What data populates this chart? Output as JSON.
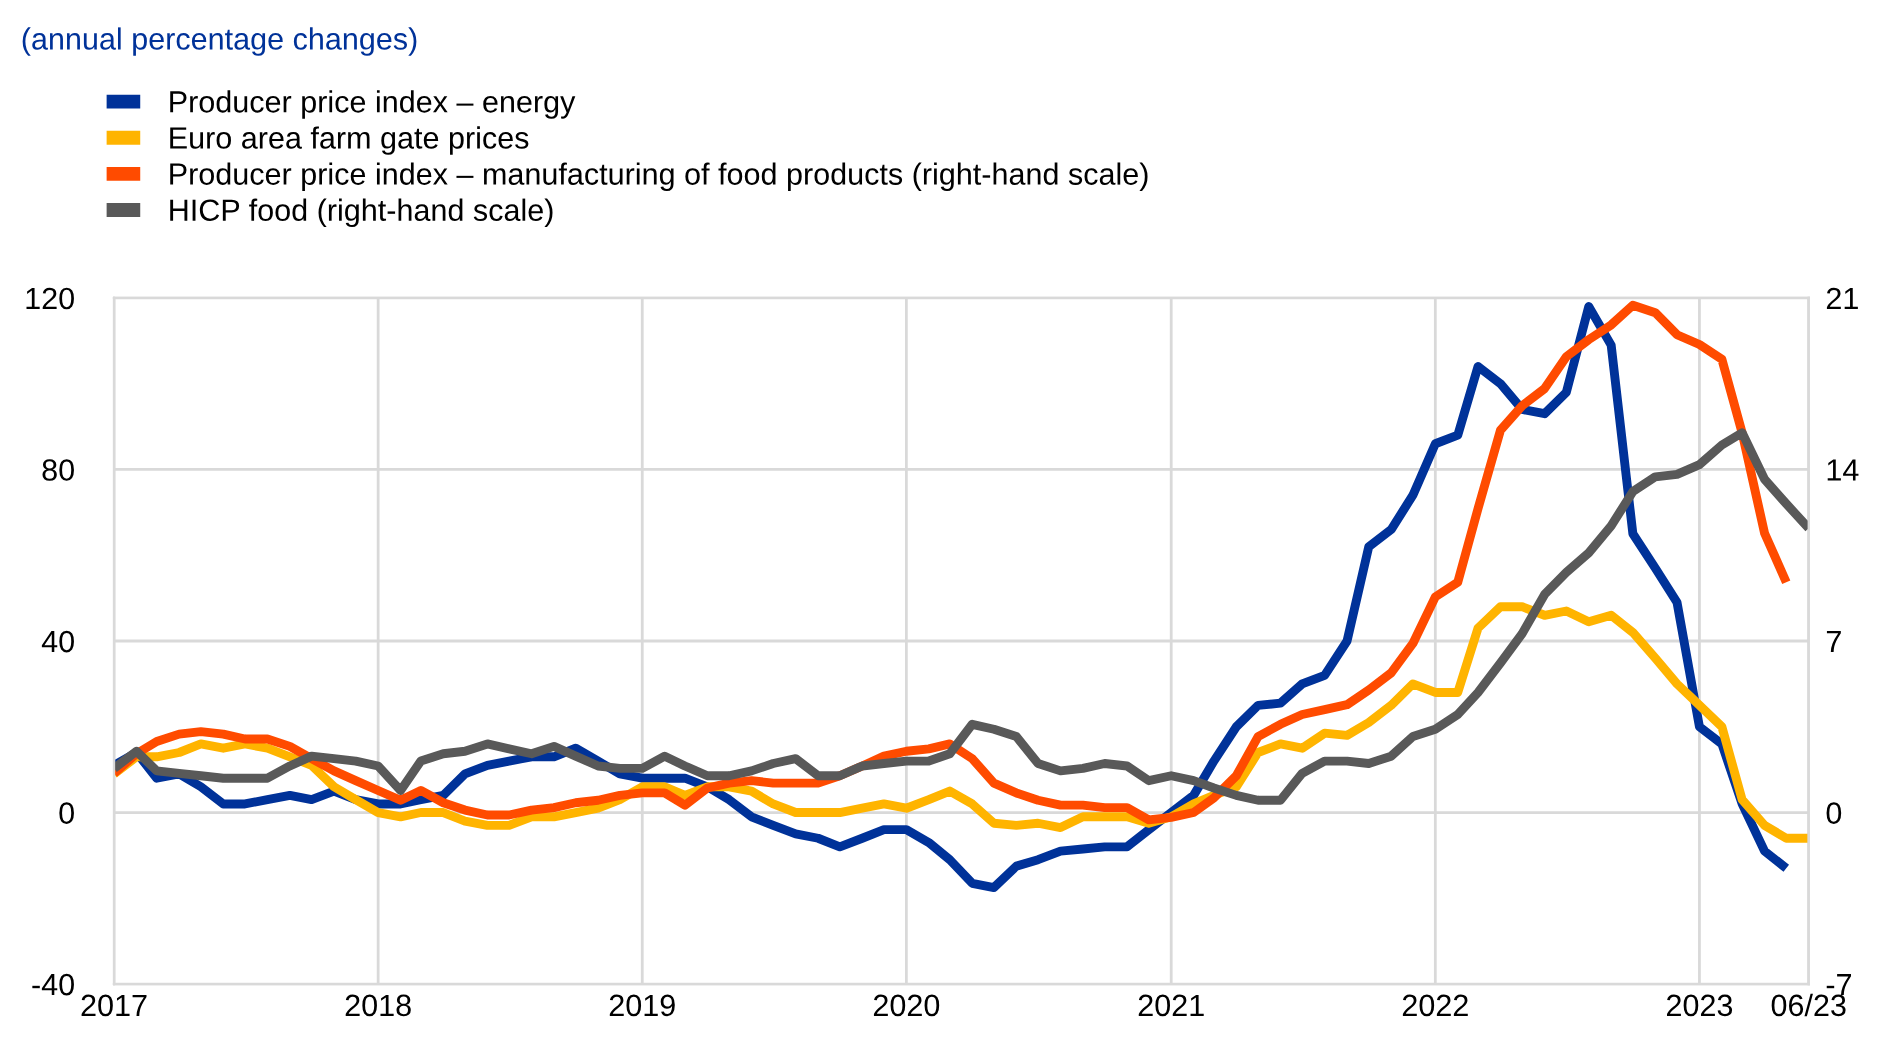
{
  "chart_data": {
    "type": "line",
    "title": "(annual percentage changes)",
    "x": [
      "2017-01",
      "2017-02",
      "2017-03",
      "2017-04",
      "2017-05",
      "2017-06",
      "2017-07",
      "2017-08",
      "2017-09",
      "2017-10",
      "2017-11",
      "2017-12",
      "2018-01",
      "2018-02",
      "2018-03",
      "2018-04",
      "2018-05",
      "2018-06",
      "2018-07",
      "2018-08",
      "2018-09",
      "2018-10",
      "2018-11",
      "2018-12",
      "2019-01",
      "2019-02",
      "2019-03",
      "2019-04",
      "2019-05",
      "2019-06",
      "2019-07",
      "2019-08",
      "2019-09",
      "2019-10",
      "2019-11",
      "2019-12",
      "2020-01",
      "2020-02",
      "2020-03",
      "2020-04",
      "2020-05",
      "2020-06",
      "2020-07",
      "2020-08",
      "2020-09",
      "2020-10",
      "2020-11",
      "2020-12",
      "2021-01",
      "2021-02",
      "2021-03",
      "2021-04",
      "2021-05",
      "2021-06",
      "2021-07",
      "2021-08",
      "2021-09",
      "2021-10",
      "2021-11",
      "2021-12",
      "2022-01",
      "2022-02",
      "2022-03",
      "2022-04",
      "2022-05",
      "2022-06",
      "2022-07",
      "2022-08",
      "2022-09",
      "2022-10",
      "2022-11",
      "2022-12",
      "2023-01",
      "2023-02",
      "2023-03",
      "2023-04",
      "2023-05",
      "2023-06"
    ],
    "series": [
      {
        "name": "Producer price index – energy",
        "color": "#003299",
        "values": [
          11,
          14,
          8,
          9,
          6,
          2,
          2,
          3,
          4,
          3,
          5,
          3,
          2,
          2,
          3,
          4,
          9,
          11,
          12,
          13,
          13,
          15,
          12,
          9,
          8,
          8,
          8,
          6,
          3,
          -1,
          -3,
          -5,
          -6,
          -8,
          -6,
          -4,
          -4,
          -7,
          -11,
          -16.5,
          -17.5,
          -12.5,
          -11,
          -9,
          -8.5,
          -8,
          -8,
          -4,
          0,
          4,
          12,
          20,
          25,
          25.5,
          30,
          32,
          40,
          62,
          66,
          74,
          86,
          88,
          104,
          100,
          94,
          93,
          98,
          118,
          109,
          65,
          57,
          49,
          20,
          16,
          2,
          -9,
          -13,
          null
        ]
      },
      {
        "name": "Euro area farm gate prices",
        "color": "#ffb400",
        "values": [
          9,
          13,
          13,
          14,
          16,
          15,
          16,
          15,
          13,
          11,
          6,
          3,
          0,
          -1,
          0,
          0,
          -2,
          -3,
          -3,
          -1,
          -1,
          0,
          1,
          3,
          6,
          6,
          4,
          6,
          6,
          5,
          2,
          0,
          0,
          0,
          1,
          2,
          1,
          3,
          5,
          2,
          -2.5,
          -3,
          -2.5,
          -3.5,
          -1,
          -1,
          -1,
          -2.5,
          -1,
          2,
          4,
          6,
          14,
          16,
          15,
          18.5,
          18,
          21,
          25,
          30,
          28,
          28,
          43,
          48,
          48,
          46,
          47,
          44.5,
          46,
          42,
          36,
          30,
          25,
          20,
          3,
          -3,
          -6,
          -6
        ]
      },
      {
        "name": "Producer price index – manufacturing of food products (right-hand scale)",
        "color": "#ff4b00",
        "axis": "y2",
        "values": [
          1.6,
          2.4,
          2.9,
          3.2,
          3.3,
          3.2,
          3.0,
          3.0,
          2.7,
          2.2,
          1.7,
          1.3,
          0.9,
          0.5,
          0.9,
          0.4,
          0.1,
          -0.1,
          -0.1,
          0.1,
          0.2,
          0.4,
          0.5,
          0.7,
          0.8,
          0.8,
          0.3,
          1.0,
          1.2,
          1.3,
          1.2,
          1.2,
          1.2,
          1.5,
          1.9,
          2.3,
          2.5,
          2.6,
          2.8,
          2.2,
          1.2,
          0.8,
          0.5,
          0.3,
          0.3,
          0.2,
          0.2,
          -0.3,
          -0.2,
          0,
          0.6,
          1.5,
          3.1,
          3.6,
          4.0,
          4.2,
          4.4,
          5.0,
          5.7,
          6.9,
          8.8,
          9.4,
          12.4,
          15.6,
          16.6,
          17.3,
          18.6,
          19.3,
          19.9,
          20.7,
          20.4,
          19.5,
          19.1,
          18.5,
          15.5,
          11.4,
          9.4,
          null
        ]
      },
      {
        "name": "HICP food (right-hand scale)",
        "color": "#595959",
        "axis": "y2",
        "values": [
          1.8,
          2.5,
          1.7,
          1.6,
          1.5,
          1.4,
          1.4,
          1.4,
          1.9,
          2.3,
          2.2,
          2.1,
          1.9,
          0.9,
          2.1,
          2.4,
          2.5,
          2.8,
          2.6,
          2.4,
          2.7,
          2.3,
          1.9,
          1.8,
          1.8,
          2.3,
          1.9,
          1.5,
          1.5,
          1.7,
          2.0,
          2.2,
          1.5,
          1.5,
          1.9,
          2.0,
          2.1,
          2.1,
          2.4,
          3.6,
          3.4,
          3.1,
          2.0,
          1.7,
          1.8,
          2.0,
          1.9,
          1.3,
          1.5,
          1.3,
          1.0,
          0.7,
          0.5,
          0.5,
          1.6,
          2.1,
          2.1,
          2.0,
          2.3,
          3.1,
          3.4,
          4.0,
          4.9,
          6.1,
          7.3,
          8.9,
          9.8,
          10.6,
          11.7,
          13.1,
          13.7,
          13.8,
          14.2,
          15.0,
          15.5,
          13.6,
          12.6,
          11.6
        ]
      }
    ],
    "xlim": [
      "2017-01",
      "2023-06"
    ],
    "xticks": [
      {
        "value": "2017-01",
        "label": "2017"
      },
      {
        "value": "2018-01",
        "label": "2018"
      },
      {
        "value": "2019-01",
        "label": "2019"
      },
      {
        "value": "2020-01",
        "label": "2020"
      },
      {
        "value": "2021-01",
        "label": "2021"
      },
      {
        "value": "2022-01",
        "label": "2022"
      },
      {
        "value": "2023-01",
        "label": "2023"
      },
      {
        "value": "2023-06",
        "label": "06/23"
      }
    ],
    "ylim": [
      -40,
      120
    ],
    "yticks": [
      -40,
      0,
      40,
      80,
      120
    ],
    "y2lim": [
      -7,
      21
    ],
    "y2ticks": [
      -7,
      0,
      7,
      14,
      21
    ],
    "grid": true,
    "legend": "top left",
    "marker": "none",
    "line_style": "solid"
  }
}
